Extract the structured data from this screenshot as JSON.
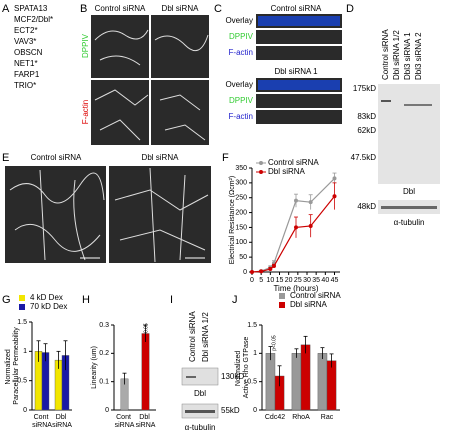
{
  "panel_labels": [
    "A",
    "B",
    "C",
    "D",
    "E",
    "F",
    "G",
    "H",
    "I",
    "J"
  ],
  "gene_list": [
    "SPATA13",
    "MCF2/Dbl*",
    "ECT2*",
    "VAV3*",
    "OBSCN",
    "NET1*",
    "FARP1",
    "TRIO*"
  ],
  "B": {
    "columns": [
      "Control siRNA",
      "Dbl siRNA"
    ],
    "rows": [
      "DPPIV",
      "F-actin"
    ]
  },
  "C": {
    "groups": [
      {
        "title": "Control siRNA",
        "channels": [
          "Overlay",
          "DPPIV",
          "F-actin"
        ]
      },
      {
        "title": "Dbl siRNA 1",
        "channels": [
          "Overlay",
          "DPPIV",
          "F-actin"
        ]
      }
    ]
  },
  "D": {
    "lanes": [
      "Control siRNA",
      "Dbl siRNA 1/2",
      "Dbl3 siRNA 1",
      "Dbl3 siRNA 2"
    ],
    "markers": [
      "175kD",
      "83kD",
      "62kD",
      "47.5kD"
    ],
    "blot_label": "Dbl",
    "loading_marker": "48kD",
    "loading_label": "α-tubulin"
  },
  "E": {
    "columns": [
      "Control siRNA",
      "Dbl siRNA"
    ]
  },
  "I": {
    "lanes": [
      "Control siRNA",
      "Dbl siRNA 1/2"
    ],
    "markers": [
      "130kD",
      "55kD"
    ],
    "labels": [
      "Dbl",
      "α-tubulin"
    ]
  },
  "chart_data": [
    {
      "type": "line",
      "x_label": "Time (hours)",
      "y_label": "Electrical Resistance (Ωcm²)",
      "x": [
        0,
        5,
        10,
        12,
        24,
        32,
        45
      ],
      "xlim": [
        0,
        48
      ],
      "xticks": [
        0,
        5,
        10,
        15,
        20,
        25,
        30,
        35,
        40,
        45
      ],
      "ylim": [
        0,
        350
      ],
      "yticks": [
        0,
        50,
        100,
        150,
        200,
        250,
        300,
        350
      ],
      "series": [
        {
          "name": "Control siRNA",
          "color": "#999999",
          "values": [
            0,
            3,
            15,
            30,
            240,
            235,
            315
          ],
          "errors": [
            2,
            3,
            6,
            8,
            22,
            25,
            18
          ]
        },
        {
          "name": "Dbl siRNA",
          "color": "#cc0000",
          "values": [
            0,
            2,
            10,
            20,
            150,
            155,
            255
          ],
          "errors": [
            2,
            3,
            5,
            6,
            35,
            38,
            45
          ]
        }
      ]
    },
    {
      "type": "bar",
      "y_label": "Normalized Paracellular Permeability",
      "categories": [
        "Cont siRNA",
        "Dbl siRNA"
      ],
      "ylim": [
        0,
        1.5
      ],
      "yticks": [
        0,
        0.5,
        1,
        1.5
      ],
      "series": [
        {
          "name": "4 kD Dex",
          "color": "#f2e600",
          "values": [
            1.0,
            0.85
          ],
          "errors": [
            0.18,
            0.15
          ]
        },
        {
          "name": "70 kD Dex",
          "color": "#1a1aa6",
          "values": [
            0.98,
            0.93
          ],
          "errors": [
            0.15,
            0.25
          ]
        }
      ]
    },
    {
      "type": "bar",
      "y_label": "Linearity (um)",
      "categories": [
        "Cont siRNA",
        "Dbl siRNA"
      ],
      "annotation": "p<0.05",
      "ylim": [
        0,
        0.3
      ],
      "yticks": [
        0,
        0.1,
        0.2,
        0.3
      ],
      "series": [
        {
          "color": "#aaaaaa",
          "values": [
            0.11,
            null
          ],
          "errors": [
            0.02,
            null
          ]
        },
        {
          "color": "#cc0000",
          "values": [
            null,
            0.27
          ],
          "errors": [
            null,
            0.03
          ]
        }
      ]
    },
    {
      "type": "bar",
      "y_label": "Normalized Active Rho GTPase",
      "categories": [
        "Cdc42",
        "RhoA",
        "Rac"
      ],
      "annotation": "p<0.05",
      "ylim": [
        0,
        1.5
      ],
      "yticks": [
        0,
        0.5,
        1,
        1.5
      ],
      "series": [
        {
          "name": "Control siRNA",
          "color": "#999999",
          "values": [
            1.0,
            1.0,
            1.0
          ],
          "errors": [
            0.12,
            0.08,
            0.1
          ]
        },
        {
          "name": "Dbl siRNA",
          "color": "#cc0000",
          "values": [
            0.6,
            1.15,
            0.87
          ],
          "errors": [
            0.18,
            0.15,
            0.12
          ]
        }
      ]
    }
  ]
}
